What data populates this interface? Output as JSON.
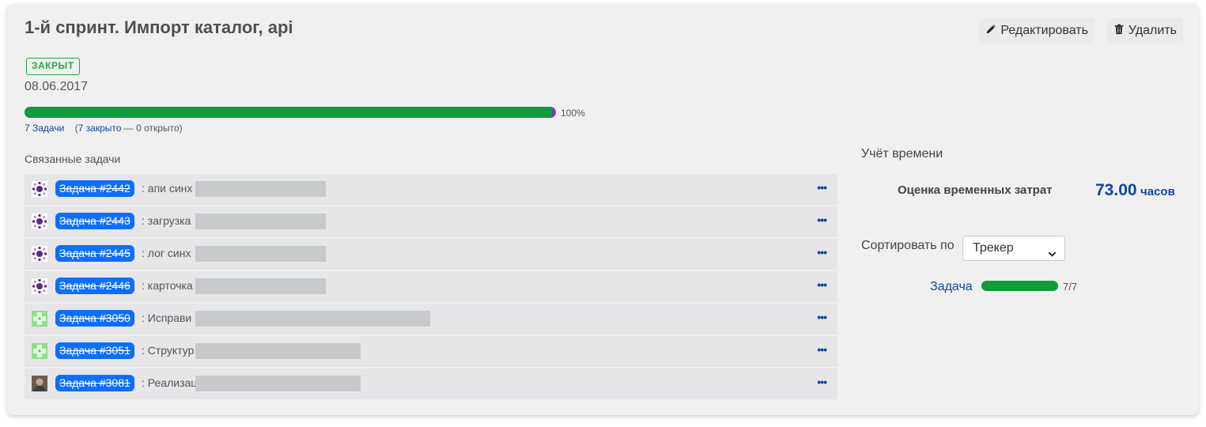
{
  "version": {
    "title": "1-й спринт. Импорт каталог, api",
    "status": "ЗАКРЫТ",
    "date": "08.06.2017",
    "progress_percent": 100,
    "progress_label": "100%",
    "issues_total_label": "7 Задачи",
    "closed_label": "7 закрыто",
    "open_label": "— 0 открыто)",
    "open_paren": "("
  },
  "actions": {
    "edit_label": "Редактировать",
    "delete_label": "Удалить"
  },
  "related": {
    "label": "Связанные задачи",
    "issues": [
      {
        "id": "Задача #2442",
        "subject": ": апи синх",
        "avatar": "purple-pattern"
      },
      {
        "id": "Задача #2443",
        "subject": ": загрузка",
        "avatar": "purple-pattern"
      },
      {
        "id": "Задача #2445",
        "subject": ": лог синх",
        "avatar": "purple-pattern"
      },
      {
        "id": "Задача #2446",
        "subject": ": карточка",
        "avatar": "purple-pattern"
      },
      {
        "id": "Задача #3050",
        "subject": ": Исправи",
        "avatar": "green-pattern"
      },
      {
        "id": "Задача #3051",
        "subject": ": Структур",
        "avatar": "green-pattern"
      },
      {
        "id": "Задача #3081",
        "subject": ": Реализац",
        "avatar": "photo"
      }
    ],
    "more_label": "•••"
  },
  "time_tracking": {
    "heading": "Учёт времени",
    "estimate_label": "Оценка временных затрат",
    "estimate_value": "73.00",
    "estimate_unit": "часов"
  },
  "sort": {
    "label": "Сортировать по",
    "selected": "Трекер"
  },
  "tracker_summary": {
    "tracker": "Задача",
    "count": "7/7",
    "done_fraction": 1.0
  },
  "colors": {
    "progress_done": "#109a3a",
    "progress_rest": "#6f42c1",
    "link": "#0d47a1",
    "issue_pill": "#0d6efd",
    "closed_badge": "#28a745"
  }
}
